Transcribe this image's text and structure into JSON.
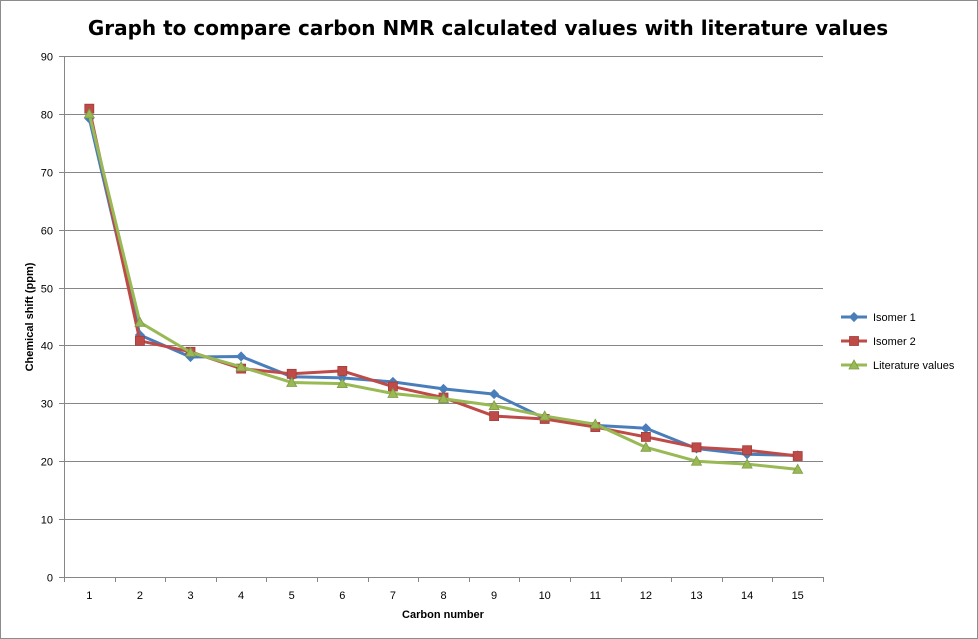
{
  "chart_data": {
    "type": "line",
    "title": "Graph to compare carbon NMR calculated values with literature values",
    "xlabel": "Carbon number",
    "ylabel": "Chemical shift (ppm)",
    "categories": [
      "1",
      "2",
      "3",
      "4",
      "5",
      "6",
      "7",
      "8",
      "9",
      "10",
      "11",
      "12",
      "13",
      "14",
      "15"
    ],
    "ylim": [
      0,
      90
    ],
    "yticks": [
      0,
      10,
      20,
      30,
      40,
      50,
      60,
      70,
      80,
      90
    ],
    "grid": true,
    "legend_position": "right",
    "series": [
      {
        "name": "Isomer 1",
        "color": "#4a7ebb",
        "marker": "diamond",
        "values": [
          79.2,
          41.8,
          38.0,
          38.1,
          34.6,
          34.4,
          33.7,
          32.5,
          31.6,
          27.4,
          26.2,
          25.7,
          22.2,
          21.2,
          21.0
        ]
      },
      {
        "name": "Isomer 2",
        "color": "#be4b48",
        "marker": "square",
        "values": [
          80.9,
          40.8,
          38.9,
          36.0,
          35.1,
          35.6,
          32.9,
          31.0,
          27.8,
          27.3,
          25.9,
          24.2,
          22.4,
          21.9,
          20.9
        ]
      },
      {
        "name": "Literature values",
        "color": "#98b954",
        "marker": "triangle",
        "values": [
          80.0,
          44.0,
          38.8,
          36.3,
          33.6,
          33.4,
          31.7,
          30.8,
          29.6,
          27.8,
          26.4,
          22.4,
          20.0,
          19.5,
          18.6
        ]
      }
    ]
  }
}
